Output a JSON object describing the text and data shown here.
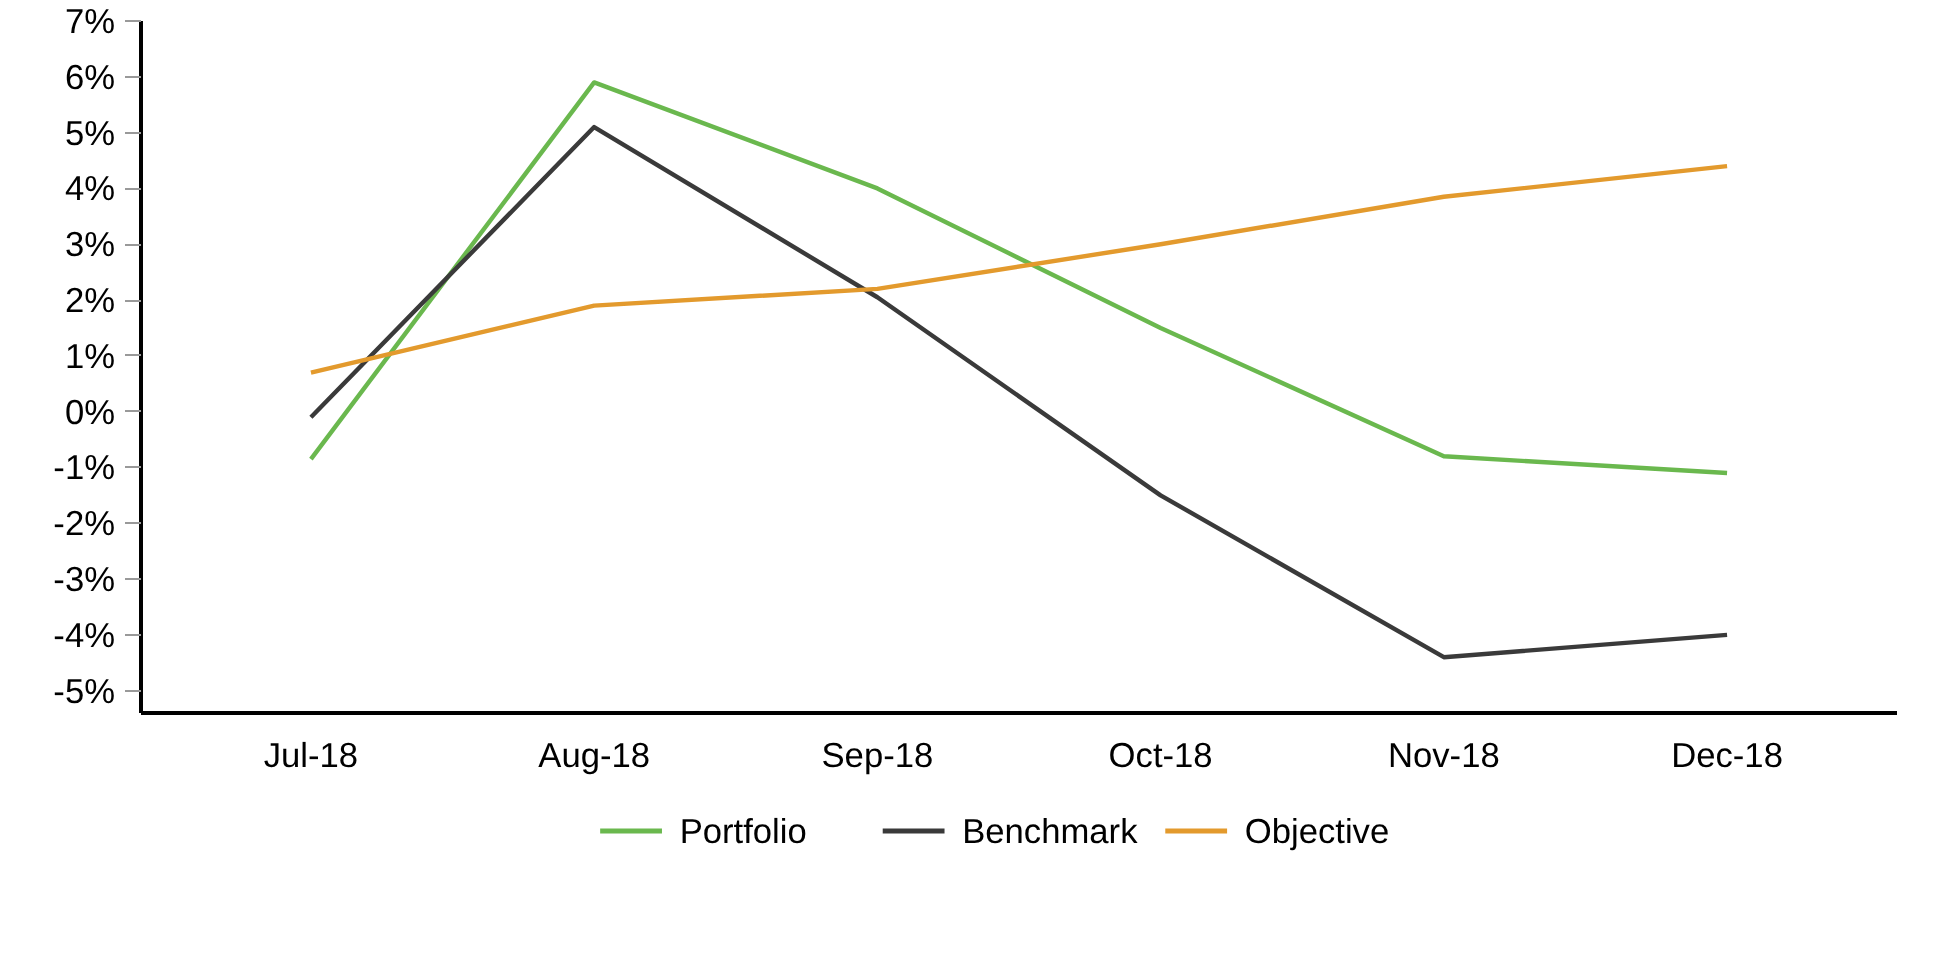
{
  "chart_data": {
    "type": "line",
    "categories": [
      "Jul-18",
      "Aug-18",
      "Sep-18",
      "Oct-18",
      "Nov-18",
      "Dec-18"
    ],
    "series": [
      {
        "name": "Portfolio",
        "color": "#6ab84e",
        "values": [
          -0.85,
          5.9,
          4.0,
          1.5,
          -0.8,
          -1.1
        ]
      },
      {
        "name": "Benchmark",
        "color": "#3a3a3a",
        "values": [
          -0.1,
          5.1,
          2.05,
          -1.5,
          -4.4,
          -4.0
        ]
      },
      {
        "name": "Objective",
        "color": "#e39a2d",
        "values": [
          0.7,
          1.9,
          2.2,
          3.0,
          3.85,
          4.4
        ]
      }
    ],
    "ylim": [
      -5.4,
      7
    ],
    "yticks": [
      {
        "value": -5,
        "label": "-5%"
      },
      {
        "value": -4,
        "label": "-4%"
      },
      {
        "value": -3,
        "label": "-3%"
      },
      {
        "value": -2,
        "label": "-2%"
      },
      {
        "value": -1,
        "label": "-1%"
      },
      {
        "value": 0,
        "label": "0%"
      },
      {
        "value": 1,
        "label": "1%"
      },
      {
        "value": 2,
        "label": "2%"
      },
      {
        "value": 3,
        "label": "3%"
      },
      {
        "value": 4,
        "label": "4%"
      },
      {
        "value": 5,
        "label": "5%"
      },
      {
        "value": 6,
        "label": "6%"
      },
      {
        "value": 7,
        "label": "7%"
      }
    ],
    "grid": false,
    "legend": "bottom",
    "marker": "none",
    "line_style": "solid"
  }
}
